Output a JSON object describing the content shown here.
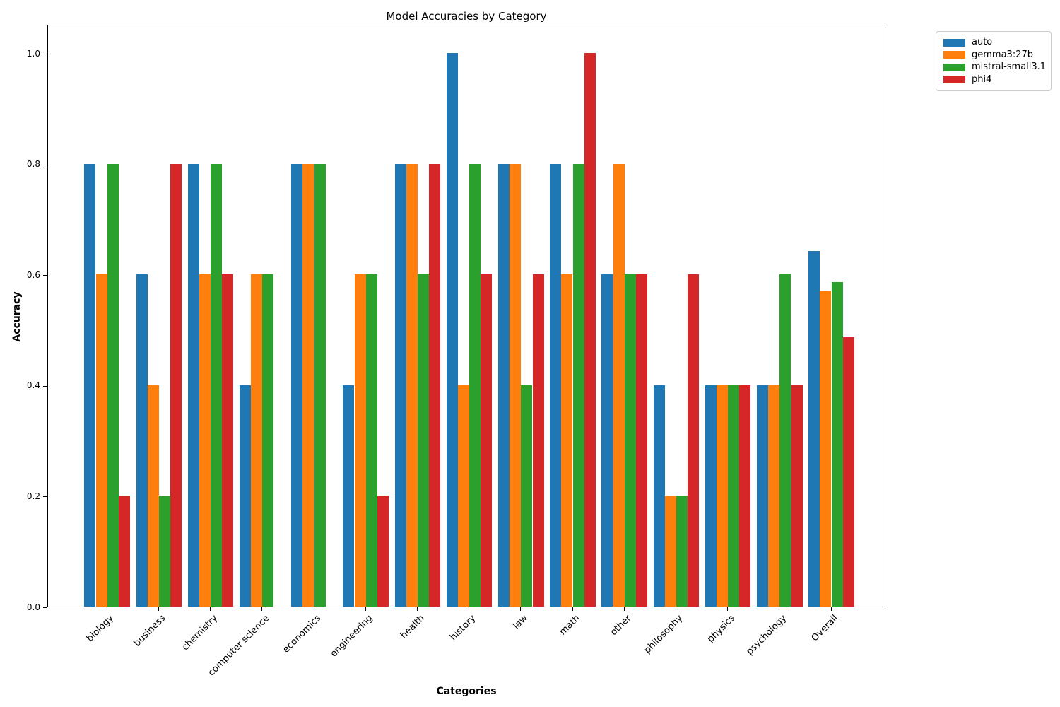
{
  "chart_data": {
    "type": "bar",
    "title": "Model Accuracies by Category",
    "xlabel": "Categories",
    "ylabel": "Accuracy",
    "categories": [
      "biology",
      "business",
      "chemistry",
      "computer science",
      "economics",
      "engineering",
      "health",
      "history",
      "law",
      "math",
      "other",
      "philosophy",
      "physics",
      "psychology",
      "Overall"
    ],
    "series": [
      {
        "name": "auto",
        "color": "#1f77b4",
        "values": [
          0.8,
          0.6,
          0.8,
          0.4,
          0.8,
          0.4,
          0.8,
          1.0,
          0.8,
          0.8,
          0.6,
          0.4,
          0.4,
          0.4,
          0.643
        ]
      },
      {
        "name": "gemma3:27b",
        "color": "#ff7f0e",
        "values": [
          0.6,
          0.4,
          0.6,
          0.6,
          0.8,
          0.6,
          0.8,
          0.4,
          0.8,
          0.6,
          0.8,
          0.2,
          0.4,
          0.4,
          0.571
        ]
      },
      {
        "name": "mistral-small3.1",
        "color": "#2ca02c",
        "values": [
          0.8,
          0.2,
          0.8,
          0.6,
          0.8,
          0.6,
          0.6,
          0.8,
          0.4,
          0.8,
          0.6,
          0.2,
          0.4,
          0.6,
          0.586
        ]
      },
      {
        "name": "phi4",
        "color": "#d62728",
        "values": [
          0.2,
          0.8,
          0.6,
          0.0,
          0.0,
          0.2,
          0.8,
          0.6,
          0.6,
          1.0,
          0.6,
          0.6,
          0.4,
          0.4,
          0.486
        ]
      }
    ],
    "yticks": [
      0.0,
      0.2,
      0.4,
      0.6,
      0.8,
      1.0
    ],
    "ylim": [
      0,
      1.052
    ],
    "grid": false,
    "legend_position": "outside upper right"
  }
}
